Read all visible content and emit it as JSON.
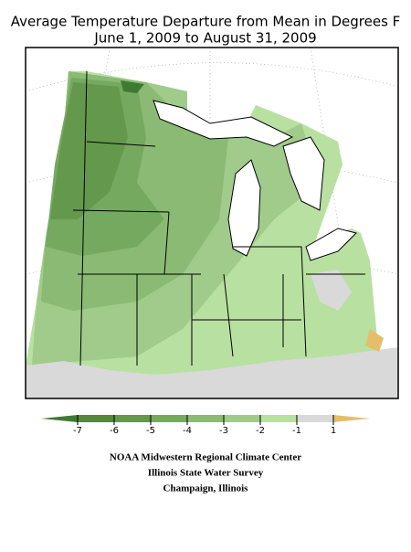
{
  "title": [
    "Average Temperature Departure from Mean in Degrees F",
    "June 1, 2009 to August 31, 2009"
  ],
  "legend": {
    "ticks": [
      -7,
      -6,
      -5,
      -4,
      -3,
      -2,
      -1,
      1
    ],
    "colors": [
      "#3f7a34",
      "#52893f",
      "#63984d",
      "#76a960",
      "#8aba74",
      "#a0cb8a",
      "#b8e0a0",
      "#d9d9d9",
      "#e6bd6a"
    ]
  },
  "credits": [
    "NOAA Midwestern Regional Climate Center",
    "Illinois State Water Survey",
    "Champaign, Illinois"
  ]
}
